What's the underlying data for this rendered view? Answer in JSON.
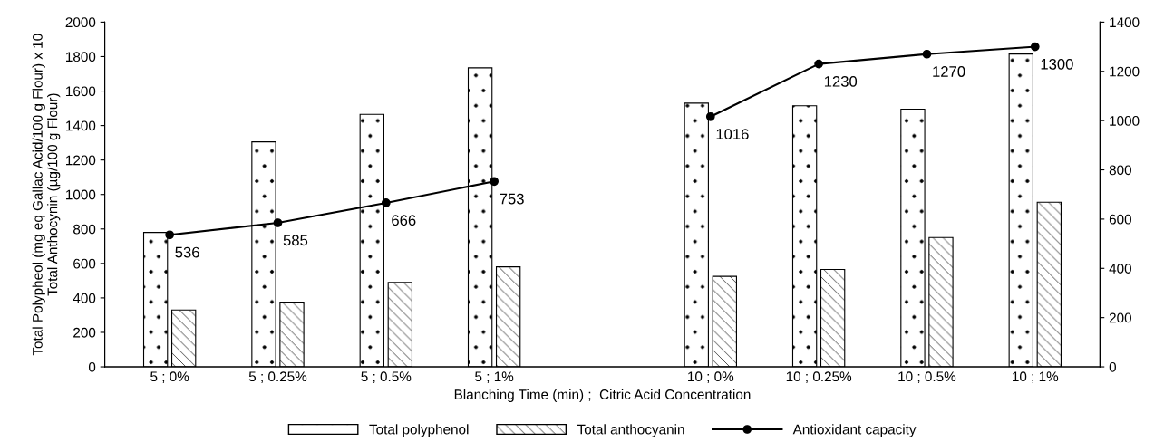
{
  "chart_data": {
    "type": "bar",
    "xlabel": "Blanching Time (min) ;  Citric Acid Concentration",
    "ylabel": "Total Polypheol (mg eq Gallac Acid/100 g Flour) x 10\nTotal Anthocynin (µg/100 g Flour)",
    "categories": [
      "5 ; 0%",
      "5 ; 0.25%",
      "5 ; 0.5%",
      "5 ; 1%",
      null,
      "10 ; 0%",
      "10 ; 0.25%",
      "10 ; 0.5%",
      "10 ; 1%"
    ],
    "series": [
      {
        "name": "Total polyphenol",
        "color": "#000000",
        "values": [
          780,
          1305,
          1465,
          1735,
          null,
          1530,
          1515,
          1495,
          1815
        ]
      },
      {
        "name": "Total anthocyanin",
        "color": "#000000",
        "values": [
          330,
          375,
          490,
          580,
          null,
          525,
          565,
          750,
          955
        ]
      },
      {
        "name": "Antioxidant capacity",
        "type": "line",
        "axis": "y2",
        "color": "#000000",
        "values": [
          536,
          585,
          666,
          753,
          null,
          1016,
          1230,
          1270,
          1300
        ],
        "value_labels": [
          "536",
          "585",
          "666",
          "753",
          null,
          "1016",
          "1230",
          "1270",
          "1300"
        ]
      }
    ],
    "ylim": [
      0,
      2000
    ],
    "yticks": [
      0,
      200,
      400,
      600,
      800,
      1000,
      1200,
      1400,
      1600,
      1800,
      2000
    ],
    "y2lim": [
      0,
      1400
    ],
    "y2ticks": [
      0,
      200,
      400,
      600,
      800,
      1000,
      1200,
      1400
    ],
    "marker": "circle",
    "line_style": "solid",
    "grid": false,
    "legend": "bottom"
  }
}
